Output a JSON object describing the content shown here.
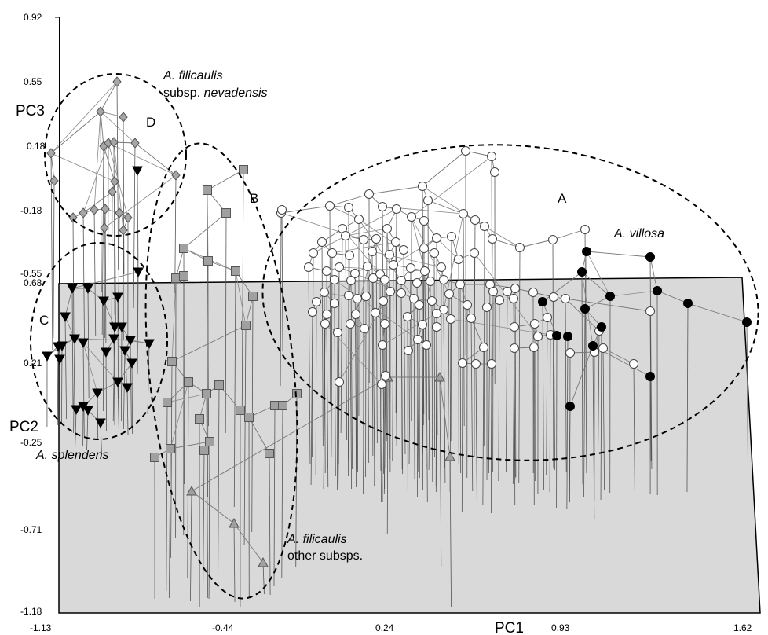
{
  "chart_data": {
    "type": "scatter",
    "subtype": "3d-scatter-with-droplines",
    "axes": {
      "pc1": {
        "label": "PC1",
        "ticks": [
          "-1.13",
          "-0.44",
          "0.24",
          "0.93",
          "1.62"
        ],
        "range": [
          -1.13,
          1.62
        ]
      },
      "pc2": {
        "label": "PC2",
        "ticks": [
          "0.68",
          "0.21",
          "-0.25",
          "-0.71",
          "-1.18"
        ],
        "range": [
          -1.18,
          0.68
        ]
      },
      "pc3": {
        "label": "PC3",
        "ticks": [
          "0.92",
          "0.55",
          "0.18",
          "-0.18",
          "-0.55"
        ],
        "range": [
          -0.55,
          0.92
        ]
      }
    },
    "floor_color": "#d9d9d9",
    "groups": [
      {
        "letter": "A",
        "species": "A. villosa",
        "note": "",
        "markers": [
          "open circle",
          "filled black circle"
        ]
      },
      {
        "letter": "B",
        "species": "",
        "note": "",
        "markers": [
          "grey square"
        ]
      },
      {
        "letter": "C",
        "species": "A. splendens",
        "note": "",
        "markers": [
          "black down-triangle"
        ]
      },
      {
        "letter": "D",
        "species": "A. filicaulis",
        "note": "subsp. nevadensis",
        "markers": [
          "grey diamond"
        ]
      },
      {
        "letter": "",
        "species": "A. filicaulis",
        "note": "other subsps.",
        "markers": [
          "grey up-triangle"
        ]
      }
    ],
    "annotations": [
      {
        "text": "A",
        "group": "A"
      },
      {
        "text": "B",
        "group": "B"
      },
      {
        "text": "C",
        "group": "C"
      },
      {
        "text": "D",
        "group": "D"
      }
    ]
  },
  "labels": {
    "pc1": "PC1",
    "pc2": "PC2",
    "pc3": "PC3",
    "A": "A",
    "B": "B",
    "C": "C",
    "D": "D",
    "villosa": "A. villosa",
    "splendens": "A. splendens",
    "filicaulis1": "A. filicaulis",
    "filicaulis1_sub_prefix": "subsp.",
    "filicaulis1_sub_name": "nevadensis",
    "filicaulis2": "A. filicaulis",
    "filicaulis2_sub": "other subsps."
  }
}
